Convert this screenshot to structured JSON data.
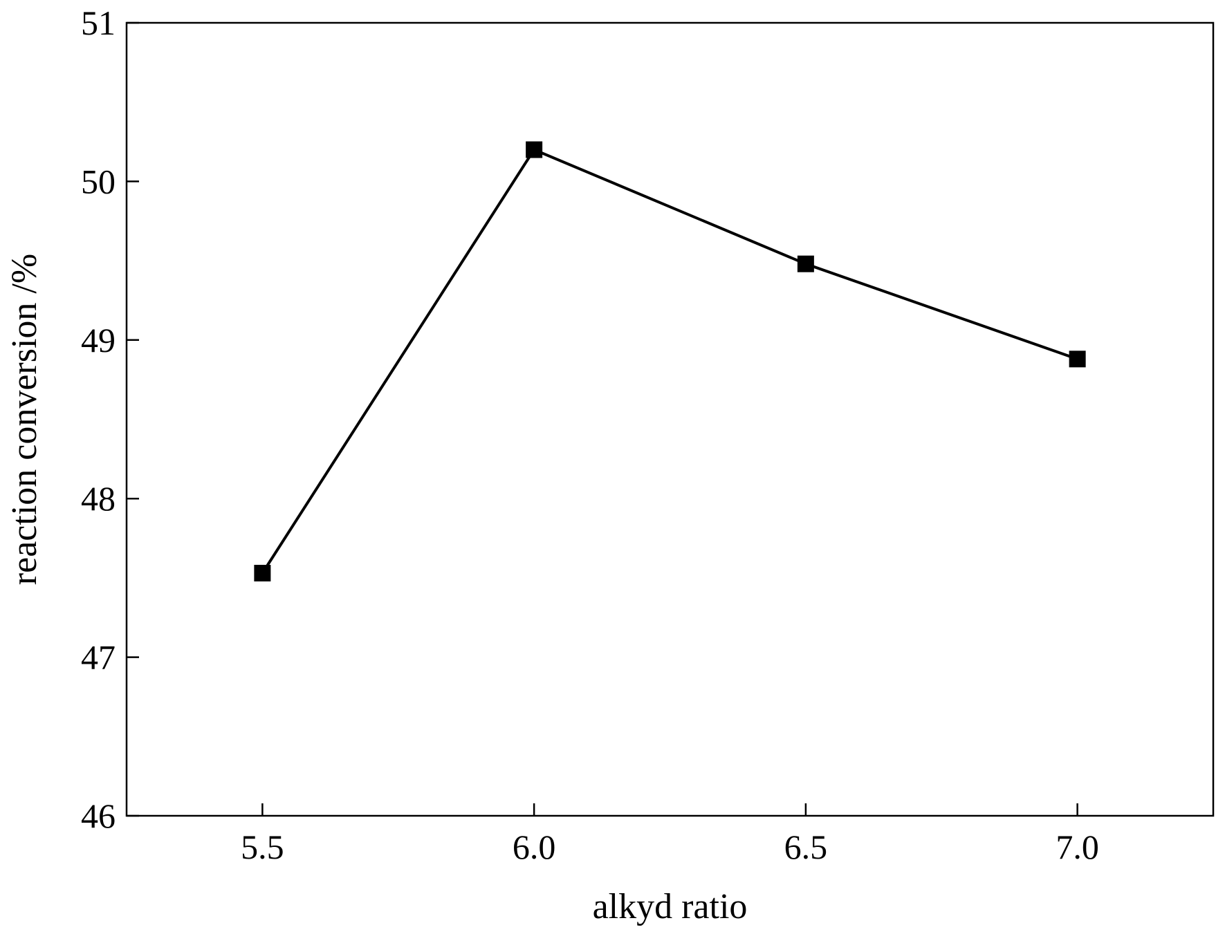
{
  "chart_data": {
    "type": "line",
    "title": "",
    "xlabel": "alkyd ratio",
    "ylabel": "reaction conversion /%",
    "xlim": [
      5.25,
      7.25
    ],
    "ylim": [
      46,
      51
    ],
    "xticks": [
      5.5,
      6.0,
      6.5,
      7.0
    ],
    "xtick_labels": [
      "5.5",
      "6.0",
      "6.5",
      "7.0"
    ],
    "yticks": [
      46,
      47,
      48,
      49,
      50,
      51
    ],
    "ytick_labels": [
      "46",
      "47",
      "48",
      "49",
      "50",
      "51"
    ],
    "grid": false,
    "legend": "none",
    "series": [
      {
        "marker": "square",
        "color": "#000000",
        "x": [
          5.5,
          6.0,
          6.5,
          7.0
        ],
        "y": [
          47.53,
          50.2,
          49.48,
          48.88
        ]
      }
    ]
  }
}
